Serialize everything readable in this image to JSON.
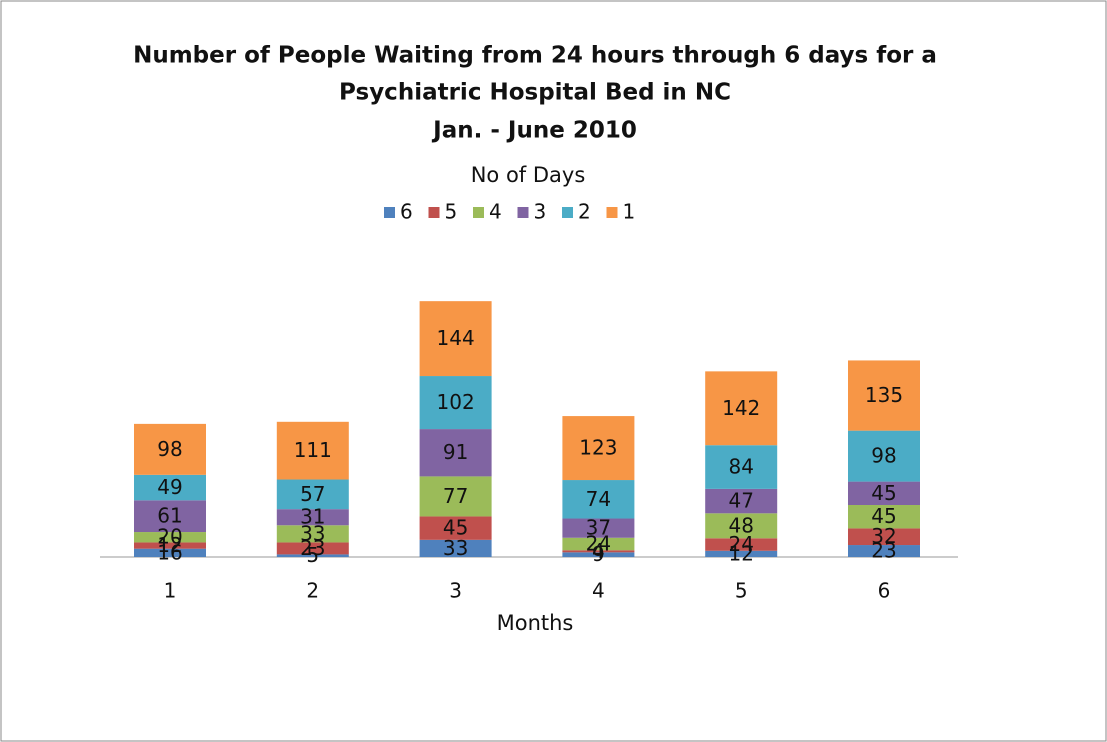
{
  "chart_data": {
    "type": "stacked_bar",
    "title": [
      "Number of People Waiting from 24 hours through 6 days for a",
      "Psychiatric Hospital Bed in NC",
      "Jan. - June 2010"
    ],
    "legend_title": "No of Days",
    "x_label": "Months",
    "categories": [
      "1",
      "2",
      "3",
      "4",
      "5",
      "6"
    ],
    "series": [
      {
        "name": "6",
        "color": "#4f81bd",
        "values": [
          16,
          5,
          33,
          9,
          12,
          23
        ]
      },
      {
        "name": "5",
        "color": "#c0504d",
        "values": [
          12,
          23,
          45,
          4,
          24,
          32
        ]
      },
      {
        "name": "4",
        "color": "#9bbb59",
        "values": [
          20,
          33,
          77,
          24,
          48,
          45
        ]
      },
      {
        "name": "3",
        "color": "#8064a2",
        "values": [
          61,
          31,
          91,
          37,
          47,
          45
        ]
      },
      {
        "name": "2",
        "color": "#4bacc6",
        "values": [
          49,
          57,
          102,
          74,
          84,
          98
        ]
      },
      {
        "name": "1",
        "color": "#f79646",
        "values": [
          98,
          111,
          144,
          123,
          142,
          135
        ]
      }
    ],
    "legend": "top"
  }
}
